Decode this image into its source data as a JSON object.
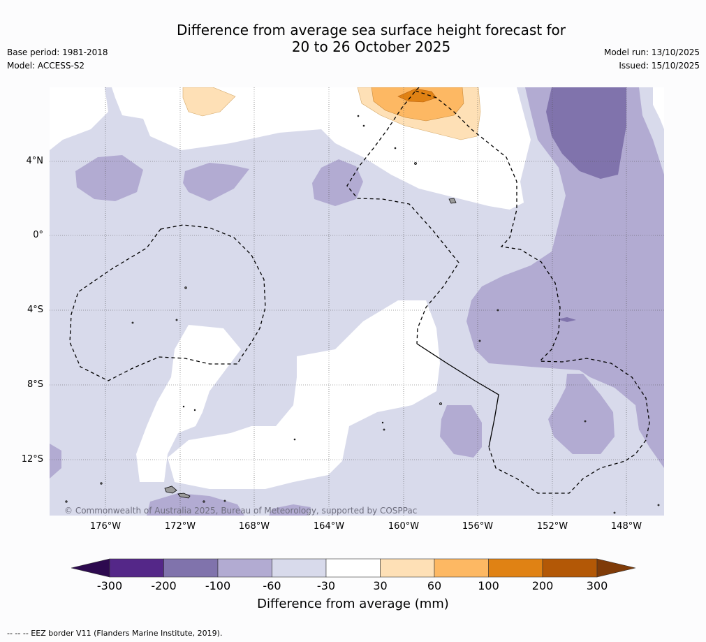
{
  "title": {
    "line1": "Difference from average sea surface height forecast for",
    "line2": "20 to 26 October 2025"
  },
  "meta": {
    "base_period": "Base period: 1981-2018",
    "model": "Model: ACCESS-S2",
    "model_run": "Model run: 13/10/2025",
    "issued": "Issued: 15/10/2025"
  },
  "latitude_labels": [
    "4°N",
    "0°",
    "4°S",
    "8°S",
    "12°S"
  ],
  "longitude_labels": [
    "176°W",
    "172°W",
    "168°W",
    "164°W",
    "160°W",
    "156°W",
    "152°W",
    "148°W"
  ],
  "copyright": "© Commonwealth of Australia 2025, Bureau of Meteorology, supported by COSPPac",
  "colorbar": {
    "ticks": [
      "-300",
      "-200",
      "-100",
      "-60",
      "-30",
      "30",
      "60",
      "100",
      "200",
      "300"
    ],
    "colors": [
      "#2d0a4f",
      "#542788",
      "#8073ac",
      "#b2abd2",
      "#d8daeb",
      "#ffffff",
      "#fee0b6",
      "#fdb863",
      "#e08214",
      "#b35806",
      "#7f3b08"
    ],
    "label": "Difference from average (mm)"
  },
  "footnote": "--  --  -- EEZ border V11 (Flanders Marine Institute, 2019).",
  "colors": {
    "level_-30_-60": "#d8daeb",
    "level_-60_-100": "#b2abd2",
    "level_-100_-200": "#8073ac",
    "level_30_60": "#fee0b6",
    "level_60_100": "#fdb863",
    "level_100_200": "#e08214"
  }
}
